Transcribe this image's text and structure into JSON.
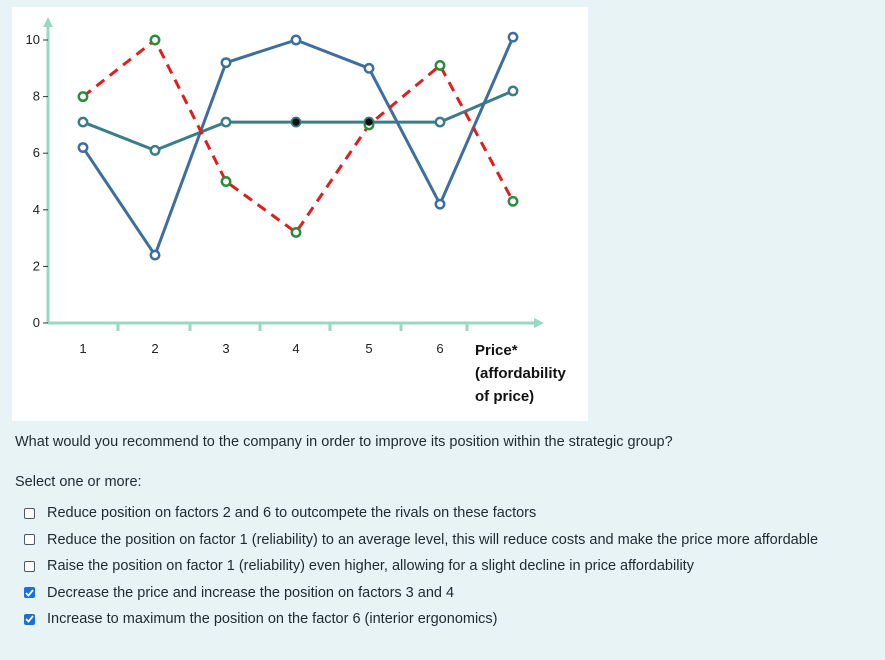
{
  "chart_data": {
    "type": "line",
    "categories": [
      "1",
      "2",
      "3",
      "4",
      "5",
      "6",
      "Price* (affordability of price)"
    ],
    "x_tick_labels": [
      "1",
      "2",
      "3",
      "4",
      "5",
      "6"
    ],
    "x_last_label_lines": [
      "Price*",
      "(affordability",
      "of price)"
    ],
    "y_ticks": [
      "0",
      "2",
      "4",
      "6",
      "8",
      "10"
    ],
    "ylim": [
      0,
      10
    ],
    "series": [
      {
        "values": [
          8.0,
          10.0,
          5.0,
          3.2,
          7.0,
          9.1,
          4.3
        ],
        "color": "#dd1f1f",
        "marker_color": "#2e8b3e",
        "style": "dashed"
      },
      {
        "values": [
          6.2,
          2.4,
          9.2,
          10.0,
          9.0,
          4.2,
          10.1
        ],
        "color": "#3d6e9e",
        "marker_color": "#3d6e9e",
        "style": "solid"
      },
      {
        "values": [
          7.1,
          6.1,
          7.1,
          7.1,
          7.1,
          7.1,
          8.2
        ],
        "color": "#3a7d88",
        "marker_color": "#3a7d88",
        "style": "solid"
      }
    ],
    "axis_color": "#9ad8c4",
    "grid": false
  },
  "question": {
    "text": "What would you recommend to the company in order to improve its position within the strategic group?",
    "select_hint": "Select one or more:"
  },
  "options": [
    {
      "label": "Reduce position on factors 2 and 6 to outcompete the rivals on these factors",
      "checked": false
    },
    {
      "label": "Reduce the position on factor 1 (reliability) to an average level, this will reduce costs and make the price more affordable",
      "checked": false
    },
    {
      "label": "Raise the position on factor 1 (reliability) even higher, allowing for a slight decline in price affordability",
      "checked": false
    },
    {
      "label": "Decrease the price and increase the position on factors 3 and 4",
      "checked": true
    },
    {
      "label": "Increase to maximum the position on the factor 6 (interior ergonomics)",
      "checked": true
    }
  ]
}
